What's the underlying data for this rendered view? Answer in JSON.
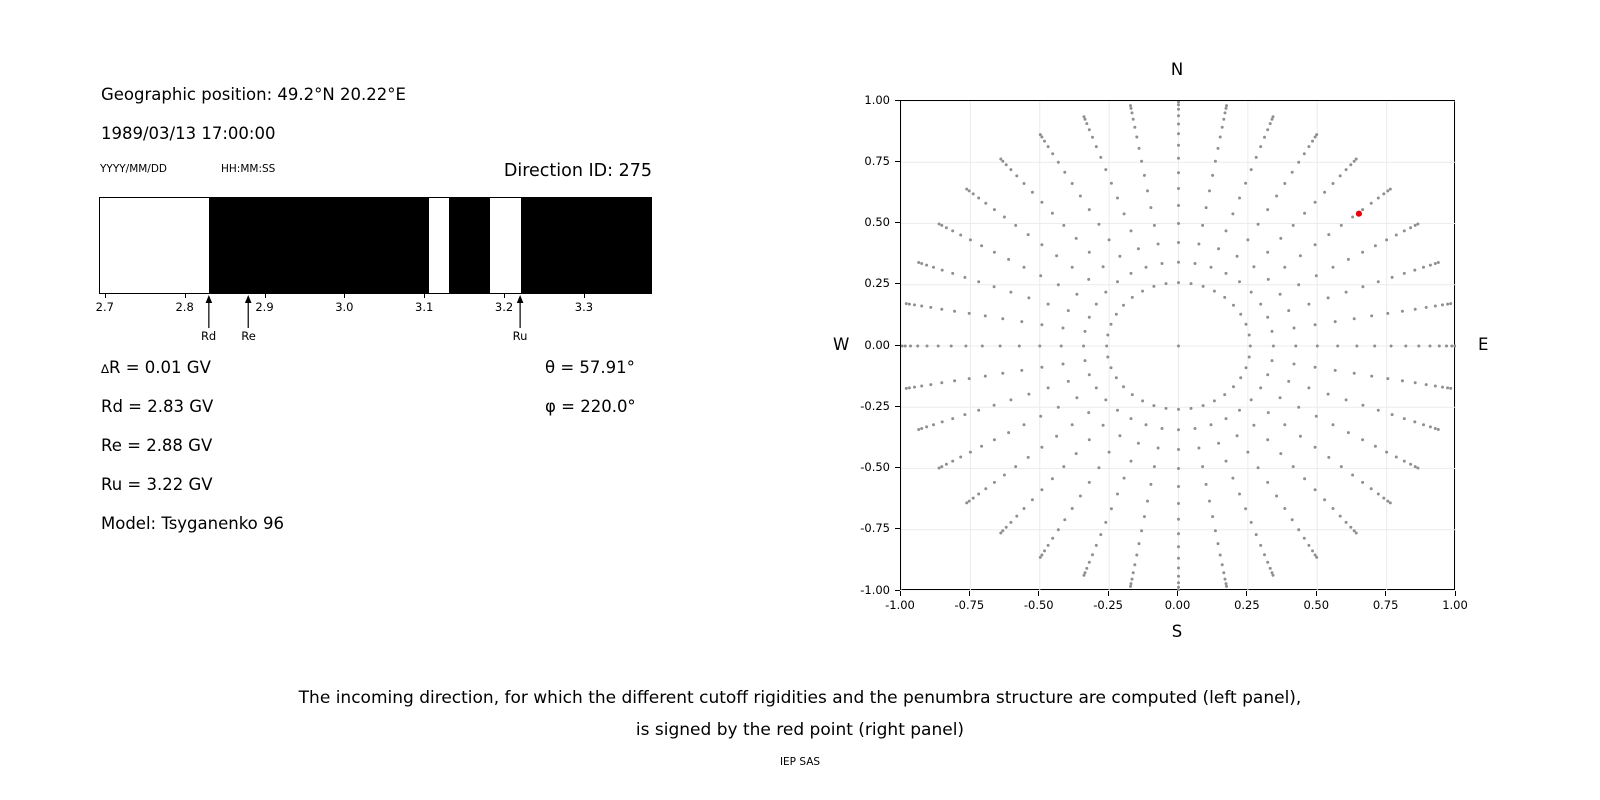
{
  "header": {
    "geo_position": "Geographic position: 49.2°N 20.22°E",
    "datetime": "1989/03/13 17:00:00",
    "date_format_label": "YYYY/MM/DD",
    "time_format_label": "HH:MM:SS",
    "direction_id": "Direction ID: 275"
  },
  "parameters": {
    "delta_r": "R = 0.01 GV",
    "delta_symbol": "∆",
    "rd": "Rd = 2.83 GV",
    "re": "Re = 2.88 GV",
    "ru": "Ru = 3.22 GV",
    "model": "Model: Tsyganenko 96",
    "theta": "θ = 57.91°",
    "phi": "φ = 220.0°"
  },
  "chart_data": [
    {
      "id": "penumbra_structure",
      "type": "bar",
      "x_min": 2.694,
      "x_max": 3.384,
      "xticks": [
        {
          "v": 2.7,
          "label": "2.7"
        },
        {
          "v": 2.8,
          "label": "2.8"
        },
        {
          "v": 2.9,
          "label": "2.9"
        },
        {
          "v": 3.0,
          "label": "3.0"
        },
        {
          "v": 3.1,
          "label": "3.1"
        },
        {
          "v": 3.2,
          "label": "3.2"
        },
        {
          "v": 3.3,
          "label": "3.3"
        }
      ],
      "black_bands_gv": [
        {
          "from": 2.83,
          "to": 3.106
        },
        {
          "from": 3.131,
          "to": 3.183
        },
        {
          "from": 3.221,
          "to": 3.384
        }
      ],
      "band_color": "#000000",
      "arrows": [
        {
          "label": "Rd",
          "v": 2.83
        },
        {
          "label": "Re",
          "v": 2.88
        },
        {
          "label": "Ru",
          "v": 3.22
        }
      ]
    },
    {
      "id": "direction_map",
      "type": "scatter",
      "xlim": [
        -1,
        1
      ],
      "ylim": [
        -1,
        1
      ],
      "grid": true,
      "compass": {
        "top": "N",
        "bottom": "S",
        "left": "W",
        "right": "E"
      },
      "xticks": [
        {
          "v": -1.0,
          "label": "-1.00"
        },
        {
          "v": -0.75,
          "label": "-0.75"
        },
        {
          "v": -0.5,
          "label": "-0.50"
        },
        {
          "v": -0.25,
          "label": "-0.25"
        },
        {
          "v": 0.0,
          "label": "0.00"
        },
        {
          "v": 0.25,
          "label": "0.25"
        },
        {
          "v": 0.5,
          "label": "0.50"
        },
        {
          "v": 0.75,
          "label": "0.75"
        },
        {
          "v": 1.0,
          "label": "1.00"
        }
      ],
      "yticks": [
        {
          "v": 1.0,
          "label": "1.00"
        },
        {
          "v": 0.75,
          "label": "0.75"
        },
        {
          "v": 0.5,
          "label": "0.50"
        },
        {
          "v": 0.25,
          "label": "0.25"
        },
        {
          "v": 0.0,
          "label": "0.00"
        },
        {
          "v": -0.25,
          "label": "-0.25"
        },
        {
          "v": -0.5,
          "label": "-0.50"
        },
        {
          "v": -0.75,
          "label": "-0.75"
        },
        {
          "v": -1.0,
          "label": "-1.00"
        }
      ],
      "gray_grid_points": {
        "azimuth_start_deg": 0,
        "azimuth_step_deg": 10,
        "azimuth_count": 36,
        "zenith_start_deg": 15,
        "zenith_end_deg": 85,
        "zenith_step_deg": 5,
        "radius_equals": "sin(zenith)",
        "center_point": true,
        "color": "#8f8f8f"
      },
      "red_point": {
        "x": 0.65,
        "y": 0.54,
        "color": "#e8000b"
      }
    }
  ],
  "caption": {
    "line1": "The incoming direction, for which the different cutoff rigidities and the penumbra structure are computed (left panel),",
    "line2": "is signed by the red point (right panel)"
  },
  "footer": {
    "credit": "IEP SAS"
  }
}
